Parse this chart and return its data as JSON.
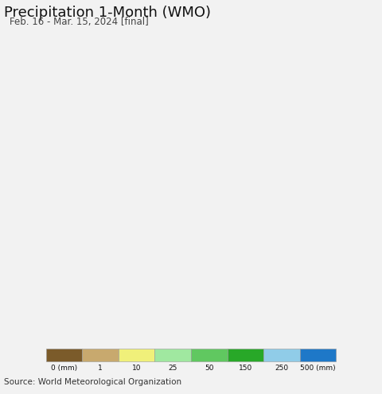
{
  "title": "Precipitation 1-Month (WMO)",
  "subtitle": "Feb. 16 - Mar. 15, 2024 [final]",
  "source": "Source: World Meteorological Organization",
  "colorbar_labels": [
    "0 (mm)",
    "1",
    "10",
    "25",
    "50",
    "150",
    "250",
    "500 (mm)"
  ],
  "colorbar_colors": [
    "#7B5B2A",
    "#C8A96E",
    "#F0F07A",
    "#A0E8A0",
    "#60C860",
    "#28A828",
    "#90CCE8",
    "#1E78C8"
  ],
  "fig_bg": "#F2F2F2",
  "map_bg": "#E8E8EC",
  "water_color": "#C8E8F4",
  "neighbor_color": "#DCDCE0",
  "title_fontsize": 13,
  "subtitle_fontsize": 8.5,
  "source_fontsize": 7.5,
  "extent": [
    22.0,
    40.5,
    44.0,
    53.8
  ]
}
